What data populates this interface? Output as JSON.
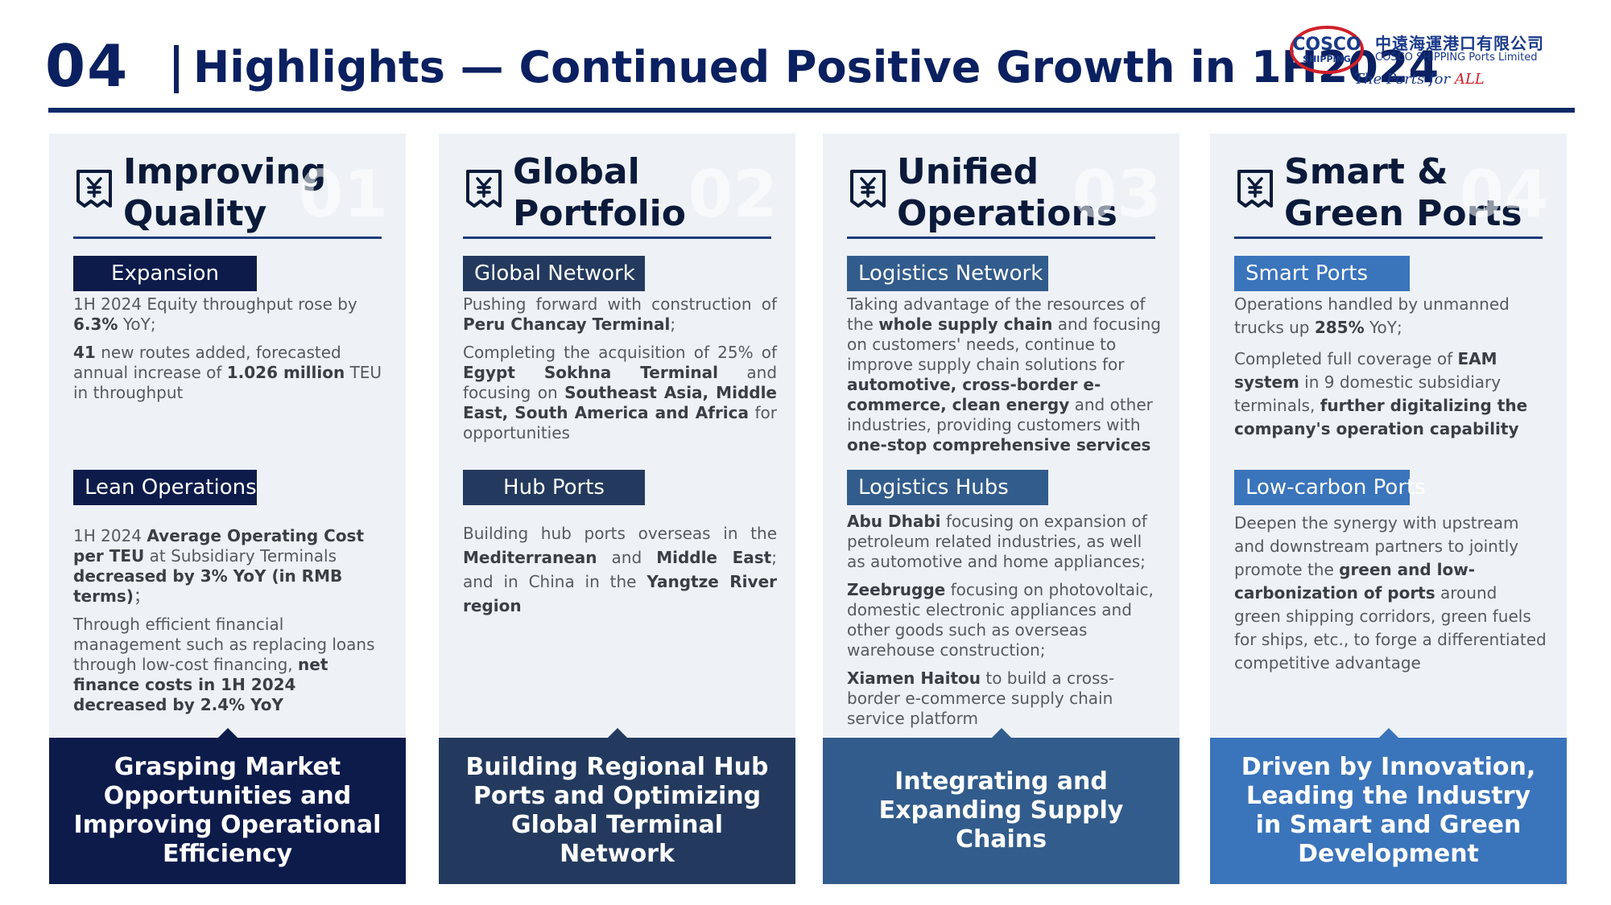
{
  "header": {
    "slide_number": "04",
    "title": "Highlights — Continued Positive Growth in 1H2024",
    "logo": {
      "mark_top": "COSCO",
      "mark_bottom": "SHIPPING",
      "name_cn": "中遠海運港口有限公司",
      "name_en": "COSCO SHIPPING Ports Limited",
      "tagline_prefix": "The Ports for ",
      "tagline_emphasis": "ALL"
    }
  },
  "colors": {
    "navy": "#0d1b4b",
    "dark_slate": "#233a5e",
    "steel_blue": "#325c8c",
    "bright_blue": "#3a74bb",
    "panel_bg": "#eef2f6"
  },
  "columns": [
    {
      "icon": "document-yen-icon",
      "title": "Improving\nQuality",
      "number": "01",
      "sections": [
        {
          "label": "Expansion",
          "paragraphs": [
            "1H 2024 Equity throughput rose by <b>6.3%</b> YoY;",
            "<b>41</b> new routes added, forecasted annual increase of <b>1.026 million</b> TEU in throughput"
          ]
        },
        {
          "label": "Lean Operations",
          "paragraphs": [
            "1H 2024 <b>Average Operating Cost per TEU</b> at Subsidiary Terminals <b>decreased by 3% YoY (in RMB terms)</b>；",
            "Through efficient financial management such as replacing loans through low-cost financing, <b>net finance costs in 1H 2024 decreased by 2.4% YoY</b>"
          ]
        }
      ],
      "bottom": "Grasping Market Opportunities and Improving Operational Efficiency"
    },
    {
      "icon": "document-yen-icon",
      "title": "Global\nPortfolio",
      "number": "02",
      "sections": [
        {
          "label": "Global Network",
          "paragraphs": [
            "Pushing forward with construction of <b>Peru Chancay Terminal</b>;",
            "Completing the acquisition of 25% of <b>Egypt Sokhna Terminal</b> and focusing on <b>Southeast Asia, Middle East, South America and Africa</b> for opportunities"
          ]
        },
        {
          "label": "Hub Ports",
          "paragraphs": [
            "Building hub ports overseas in the <b>Mediterranean</b> and <b>Middle East</b>; and in China in the <b>Yangtze River region</b>"
          ]
        }
      ],
      "bottom": "Building Regional Hub Ports and Optimizing Global Terminal Network"
    },
    {
      "icon": "document-yen-icon",
      "title": "Unified\nOperations",
      "number": "03",
      "sections": [
        {
          "label": "Logistics Network",
          "paragraphs": [
            "Taking advantage of the resources of the <b>whole supply chain</b> and focusing on customers' needs, continue to improve supply chain solutions for <b>automotive, cross-border e-commerce, clean energy</b> and other industries, providing customers with <b>one-stop comprehensive services</b>"
          ]
        },
        {
          "label": "Logistics Hubs",
          "paragraphs": [
            "<b>Abu Dhabi</b> focusing on expansion of petroleum related industries, as well as automotive and home appliances;",
            "<b>Zeebrugge</b> focusing on photovoltaic, domestic electronic appliances and other goods such as overseas warehouse construction;",
            "<b>Xiamen Haitou</b> to build a cross-border e-commerce supply chain service platform"
          ]
        }
      ],
      "bottom": "Integrating and Expanding Supply Chains"
    },
    {
      "icon": "document-yen-icon",
      "title": "Smart &\nGreen Ports",
      "number": "04",
      "sections": [
        {
          "label": "Smart Ports",
          "paragraphs": [
            "Operations handled by unmanned trucks up <b>285%</b> YoY;",
            "Completed full coverage of <b>EAM system</b> in 9 domestic subsidiary terminals, <b>further digitalizing the company's operation capability</b>"
          ]
        },
        {
          "label": "Low-carbon Ports",
          "paragraphs": [
            "Deepen the synergy with upstream and downstream partners to jointly promote the <b>green and low-carbonization of ports</b> around green shipping corridors, green fuels for ships, etc., to forge a differentiated competitive advantage"
          ]
        }
      ],
      "bottom": "Driven by Innovation, Leading the Industry in Smart and Green Development"
    }
  ]
}
